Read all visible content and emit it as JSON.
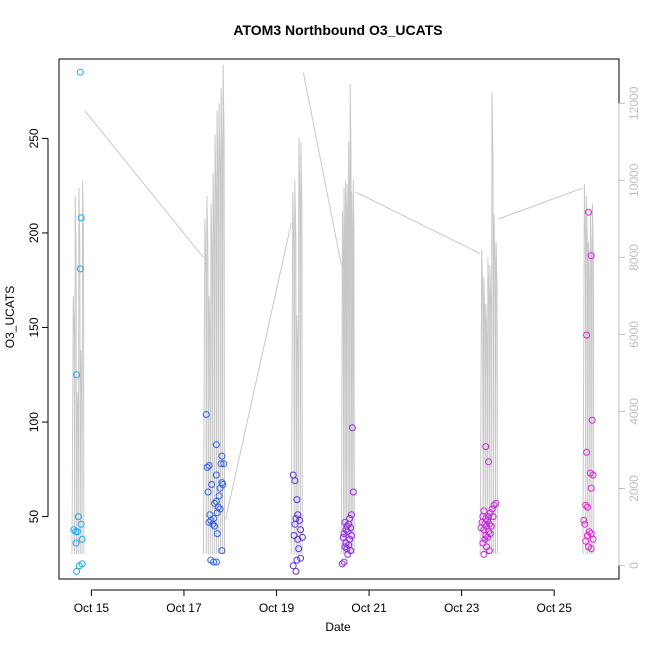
{
  "chart_data": {
    "type": "scatter",
    "title": "ATOM3 Northbound O3_UCATS",
    "xlabel": "Date",
    "ylabel": "O3_UCATS",
    "x_ticks": [
      "Oct 15",
      "Oct 17",
      "Oct 19",
      "Oct 21",
      "Oct 23",
      "Oct 25"
    ],
    "x_tick_values": [
      15,
      17,
      19,
      21,
      23,
      25
    ],
    "xlim": [
      14.3,
      26.4
    ],
    "y_ticks": [
      50,
      100,
      150,
      200,
      250
    ],
    "ylim": [
      17,
      292
    ],
    "y2_ticks": [
      0,
      2000,
      4000,
      6000,
      8000,
      10000,
      12000
    ],
    "y2lim": [
      -350,
      13150
    ],
    "grid": false,
    "colors": {
      "axis": "#000000",
      "secondary_axis": "#bebebe",
      "altitude_line": "#c8c8c8"
    },
    "series": [
      {
        "color": "#1fa7e8",
        "points": [
          [
            14.76,
            285
          ],
          [
            14.68,
            125
          ],
          [
            14.78,
            208
          ],
          [
            14.76,
            181
          ],
          [
            14.72,
            50
          ],
          [
            14.66,
            42
          ],
          [
            14.7,
            42
          ],
          [
            14.78,
            46
          ],
          [
            14.62,
            43
          ],
          [
            14.8,
            38
          ],
          [
            14.67,
            36
          ],
          [
            14.8,
            25
          ],
          [
            14.74,
            24
          ],
          [
            14.68,
            21
          ]
        ]
      },
      {
        "color": "#3161e6",
        "points": [
          [
            17.48,
            104
          ],
          [
            17.7,
            88
          ],
          [
            17.82,
            82
          ],
          [
            17.8,
            78
          ],
          [
            17.54,
            77
          ],
          [
            17.86,
            78
          ],
          [
            17.5,
            76
          ],
          [
            17.7,
            72
          ],
          [
            17.82,
            68
          ],
          [
            17.84,
            67
          ],
          [
            17.6,
            67
          ],
          [
            17.78,
            65
          ],
          [
            17.52,
            63
          ],
          [
            17.76,
            61
          ],
          [
            17.7,
            58
          ],
          [
            17.66,
            57
          ],
          [
            17.74,
            55
          ],
          [
            17.78,
            54
          ],
          [
            17.72,
            52
          ],
          [
            17.56,
            51
          ],
          [
            17.64,
            49
          ],
          [
            17.58,
            48
          ],
          [
            17.62,
            46
          ],
          [
            17.54,
            47
          ],
          [
            17.66,
            45
          ],
          [
            17.72,
            41
          ],
          [
            17.82,
            32
          ],
          [
            17.58,
            27
          ],
          [
            17.64,
            26
          ],
          [
            17.7,
            26
          ]
        ]
      },
      {
        "color": "#5a2fd9",
        "points": [
          [
            19.36,
            72
          ],
          [
            19.4,
            69
          ],
          [
            19.44,
            59
          ],
          [
            19.46,
            51
          ],
          [
            19.42,
            49
          ],
          [
            19.5,
            48
          ],
          [
            19.4,
            46
          ],
          [
            19.52,
            43
          ],
          [
            19.38,
            40
          ],
          [
            19.56,
            39
          ],
          [
            19.46,
            38
          ],
          [
            19.48,
            33
          ],
          [
            19.52,
            28
          ],
          [
            19.44,
            27
          ],
          [
            19.36,
            24
          ],
          [
            19.42,
            21
          ]
        ]
      },
      {
        "color": "#8e2be0",
        "points": [
          [
            20.64,
            97
          ],
          [
            20.66,
            63
          ],
          [
            20.48,
            47
          ],
          [
            20.62,
            51
          ],
          [
            20.58,
            49
          ],
          [
            20.56,
            46
          ],
          [
            20.52,
            45
          ],
          [
            20.6,
            44
          ],
          [
            20.5,
            43
          ],
          [
            20.54,
            42
          ],
          [
            20.46,
            41
          ],
          [
            20.62,
            40
          ],
          [
            20.44,
            39
          ],
          [
            20.58,
            38
          ],
          [
            20.5,
            36
          ],
          [
            20.56,
            35
          ],
          [
            20.48,
            34
          ],
          [
            20.52,
            33
          ],
          [
            20.6,
            32
          ],
          [
            20.54,
            30
          ],
          [
            20.46,
            26
          ],
          [
            20.42,
            25
          ]
        ]
      },
      {
        "color": "#c428dc",
        "points": [
          [
            23.52,
            87
          ],
          [
            23.58,
            79
          ],
          [
            23.48,
            53
          ],
          [
            23.74,
            57
          ],
          [
            23.7,
            56
          ],
          [
            23.66,
            54
          ],
          [
            23.62,
            52
          ],
          [
            23.46,
            50
          ],
          [
            23.58,
            50
          ],
          [
            23.68,
            50
          ],
          [
            23.52,
            49
          ],
          [
            23.56,
            48
          ],
          [
            23.44,
            47
          ],
          [
            23.6,
            46
          ],
          [
            23.5,
            46
          ],
          [
            23.64,
            45
          ],
          [
            23.54,
            45
          ],
          [
            23.42,
            44
          ],
          [
            23.48,
            43
          ],
          [
            23.58,
            42
          ],
          [
            23.62,
            41
          ],
          [
            23.52,
            40
          ],
          [
            23.56,
            39
          ],
          [
            23.5,
            38
          ],
          [
            23.46,
            36
          ],
          [
            23.54,
            34
          ],
          [
            23.6,
            32
          ],
          [
            23.48,
            30
          ]
        ]
      },
      {
        "color": "#e01ed4",
        "points": [
          [
            25.74,
            211
          ],
          [
            25.8,
            188
          ],
          [
            25.7,
            146
          ],
          [
            25.82,
            101
          ],
          [
            25.7,
            84
          ],
          [
            25.78,
            73
          ],
          [
            25.84,
            72
          ],
          [
            25.8,
            65
          ],
          [
            25.68,
            56
          ],
          [
            25.72,
            55
          ],
          [
            25.64,
            48
          ],
          [
            25.66,
            46
          ],
          [
            25.76,
            42
          ],
          [
            25.8,
            41
          ],
          [
            25.72,
            40
          ],
          [
            25.84,
            38
          ],
          [
            25.68,
            37
          ],
          [
            25.74,
            34
          ],
          [
            25.8,
            33
          ]
        ]
      }
    ],
    "altitude": {
      "description_axis": "right",
      "flight_windows": [
        {
          "x_start": 14.58,
          "x_end": 14.86,
          "peaks": [
            7000,
            9600,
            4500,
            9800,
            5600,
            10000
          ]
        },
        {
          "x_start": 17.42,
          "x_end": 17.9,
          "peaks": [
            9000,
            9600,
            7000,
            9400,
            10200,
            11200,
            11800,
            12000,
            12400,
            13000
          ]
        },
        {
          "x_start": 19.32,
          "x_end": 19.58,
          "peaks": [
            9700,
            10000,
            6500,
            11100,
            11000
          ]
        },
        {
          "x_start": 20.4,
          "x_end": 20.7,
          "peaks": [
            9200,
            9800,
            10000,
            9900,
            11000,
            12500,
            9700,
            10000
          ]
        },
        {
          "x_start": 23.4,
          "x_end": 23.8,
          "peaks": [
            8200,
            7500,
            6800,
            8000,
            7800,
            12300,
            9100,
            8400
          ]
        },
        {
          "x_start": 25.62,
          "x_end": 25.88,
          "peaks": [
            9900,
            9600,
            8400,
            9200,
            9400
          ]
        }
      ],
      "transit_segments": [
        [
          [
            14.86,
            11800
          ],
          [
            17.42,
            8000
          ]
        ],
        [
          [
            17.9,
            1200
          ],
          [
            19.32,
            8900
          ]
        ],
        [
          [
            19.58,
            12800
          ],
          [
            20.4,
            7800
          ]
        ],
        [
          [
            20.7,
            9700
          ],
          [
            23.4,
            8100
          ]
        ],
        [
          [
            23.8,
            9000
          ],
          [
            25.62,
            9800
          ]
        ]
      ]
    }
  }
}
